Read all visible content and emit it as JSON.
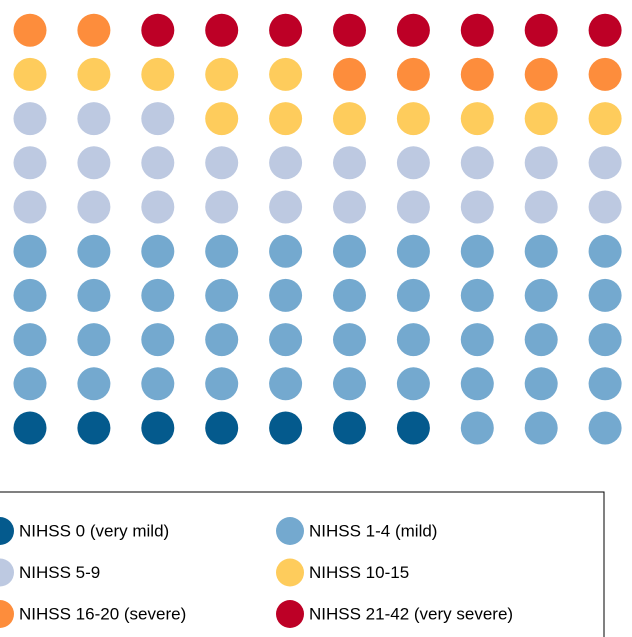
{
  "chart_data": {
    "type": "waffle",
    "rows": 10,
    "columns": 10,
    "legend": "bottom",
    "series": [
      {
        "name": "NIHSS 0 (very mild)",
        "color": "#045a8d",
        "value": 7
      },
      {
        "name": "NIHSS 1-4 (mild)",
        "color": "#74a9cf",
        "value": 43
      },
      {
        "name": "NIHSS 5-9",
        "color": "#bdc9e1",
        "value": 23
      },
      {
        "name": "NIHSS 10-15",
        "color": "#fecc5c",
        "value": 12
      },
      {
        "name": "NIHSS 16-20 (severe)",
        "color": "#fd8d3c",
        "value": 7
      },
      {
        "name": "NIHSS 21-42 (very severe)",
        "color": "#bd0026",
        "value": 8
      }
    ]
  }
}
